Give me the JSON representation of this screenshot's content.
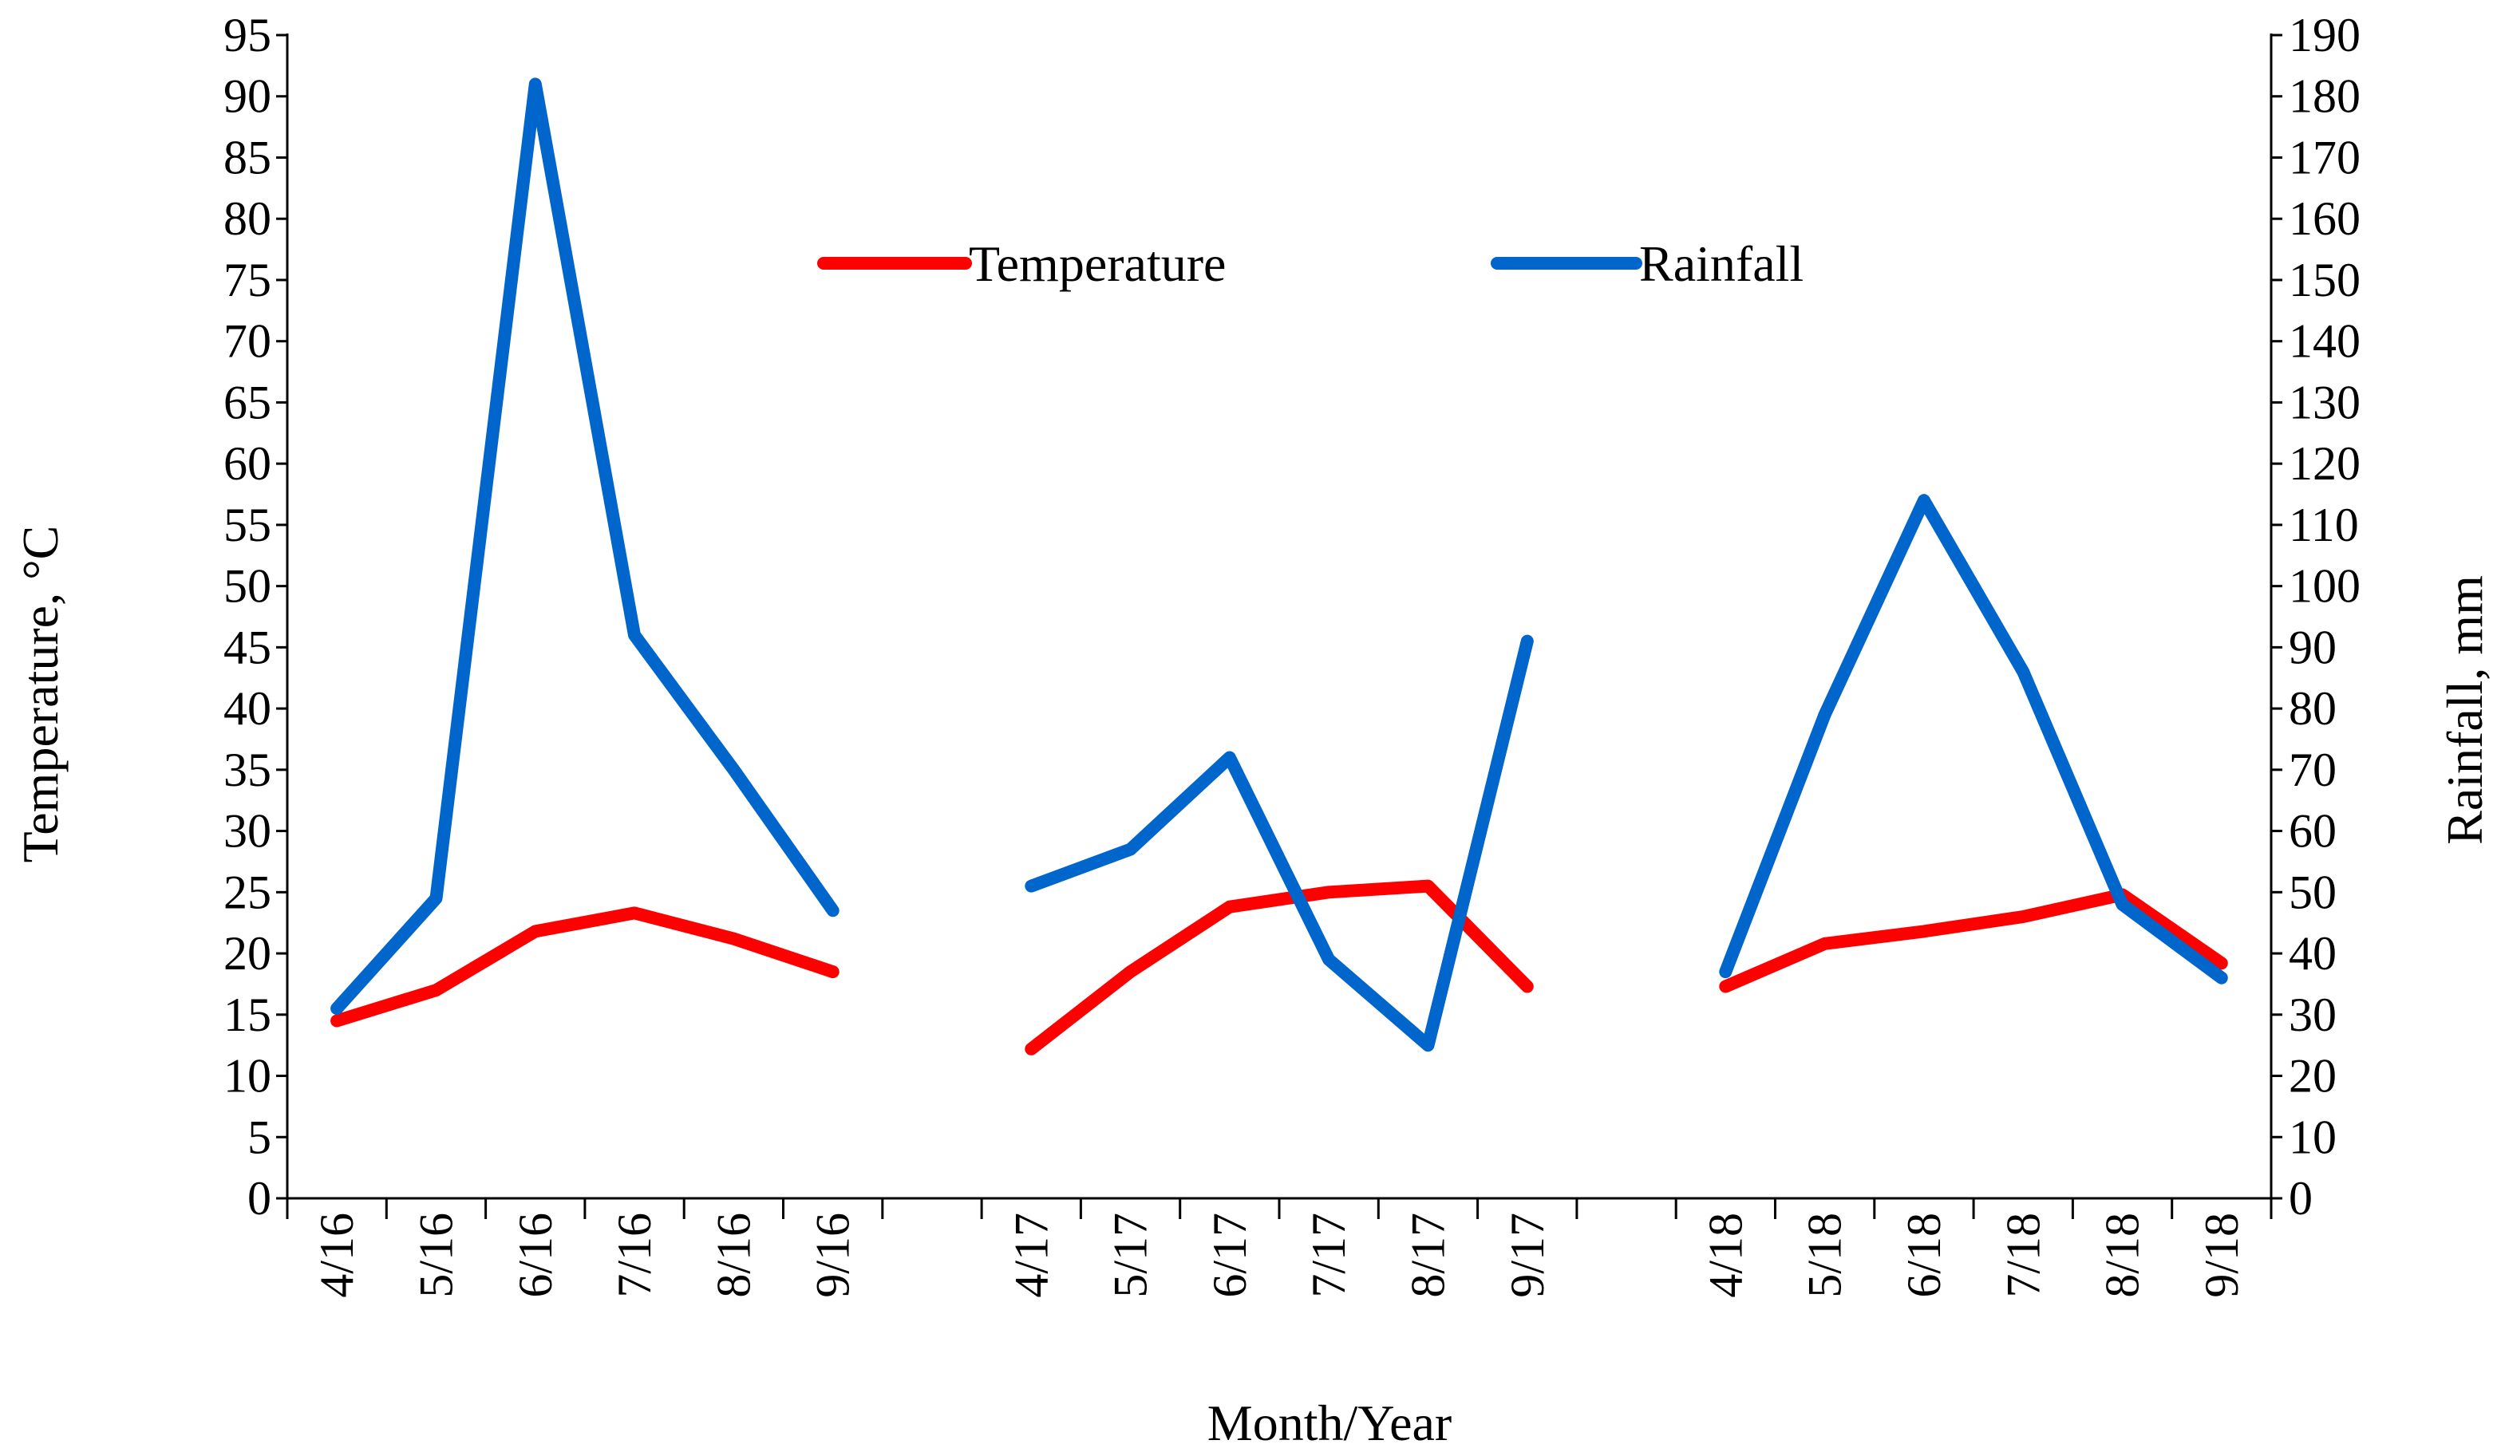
{
  "chart_data": {
    "type": "line",
    "x_title": "Month/Year",
    "y_left_title": "Temperature, °C",
    "y_right_title": "Rainfall, mm",
    "y_left_ticks": [
      "0",
      "5",
      "10",
      "15",
      "20",
      "25",
      "30",
      "35",
      "40",
      "45",
      "50",
      "55",
      "60",
      "65",
      "70",
      "75",
      "80",
      "85",
      "90",
      "95"
    ],
    "y_right_ticks": [
      "0",
      "10",
      "20",
      "30",
      "40",
      "50",
      "60",
      "70",
      "80",
      "90",
      "100",
      "110",
      "120",
      "130",
      "140",
      "150",
      "160",
      "170",
      "180",
      "190"
    ],
    "ylim_left": [
      0,
      95
    ],
    "ylim_right": [
      0,
      190
    ],
    "categories": [
      "4/16",
      "5/16",
      "6/16",
      "7/16",
      "8/16",
      "9/16",
      "",
      "4/17",
      "5/17",
      "6/17",
      "7/17",
      "8/17",
      "9/17",
      "",
      "4/18",
      "5/18",
      "6/18",
      "7/18",
      "8/18",
      "9/18"
    ],
    "series": [
      {
        "name": "Temperature",
        "axis": "left",
        "color": "#ff0000",
        "values": [
          14.5,
          17.0,
          21.8,
          23.3,
          21.2,
          18.5,
          null,
          12.2,
          18.5,
          23.8,
          25.0,
          25.5,
          17.3,
          null,
          17.3,
          20.8,
          21.8,
          23.0,
          24.8,
          19.2
        ]
      },
      {
        "name": "Rainfall",
        "axis": "right",
        "color": "#0066cc",
        "values": [
          31,
          49,
          182,
          92,
          70,
          47,
          null,
          51,
          57,
          72,
          39,
          25,
          91,
          null,
          37,
          79,
          114,
          86,
          48,
          36
        ]
      }
    ],
    "legend_position": "top-center",
    "grid": false
  }
}
